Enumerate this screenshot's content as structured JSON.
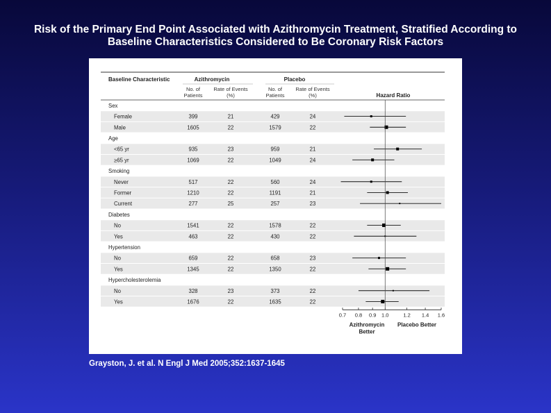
{
  "slide": {
    "title_line1": "Risk of the Primary End Point Associated with Azithromycin Treatment, Stratified According to",
    "title_line2": "Baseline Characteristics Considered to Be Coronary Risk Factors",
    "citation": "Grayston, J. et al. N Engl J Med 2005;352:1637-1645"
  },
  "chart_data": {
    "type": "forest",
    "headers": {
      "baseline": "Baseline Characteristic",
      "azithro_group": "Azithromycin",
      "placebo_group": "Placebo",
      "n_patients_l1": "No. of",
      "n_patients_l2": "Patients",
      "rate_l1": "Rate of Events",
      "rate_l2": "(%)",
      "hazard_ratio": "Hazard Ratio"
    },
    "xaxis": {
      "ticks": [
        "0.7",
        "0.8",
        "0.9",
        "1.0",
        "1.2",
        "1.4",
        "1.6"
      ],
      "tick_values": [
        0.7,
        0.8,
        0.9,
        1.0,
        1.2,
        1.4,
        1.6
      ],
      "left_label_l1": "Azithromycin",
      "left_label_l2": "Better",
      "right_label": "Placebo Better",
      "reference": 1.0
    },
    "rows": [
      {
        "kind": "group",
        "label": "Sex"
      },
      {
        "kind": "sub",
        "label": "Female",
        "azi_n": "399",
        "azi_rate": "21",
        "pla_n": "429",
        "pla_rate": "24",
        "hr": 0.89,
        "lo": 0.71,
        "hi": 1.19,
        "size": 3
      },
      {
        "kind": "sub",
        "label": "Male",
        "azi_n": "1605",
        "azi_rate": "22",
        "pla_n": "1579",
        "pla_rate": "22",
        "hr": 1.01,
        "lo": 0.88,
        "hi": 1.19,
        "size": 5
      },
      {
        "kind": "group",
        "label": "Age"
      },
      {
        "kind": "sub",
        "label": "<65 yr",
        "azi_n": "935",
        "azi_rate": "23",
        "pla_n": "959",
        "pla_rate": "21",
        "hr": 1.11,
        "lo": 0.91,
        "hi": 1.36,
        "size": 4
      },
      {
        "kind": "sub",
        "label": "≥65 yr",
        "azi_n": "1069",
        "azi_rate": "22",
        "pla_n": "1049",
        "pla_rate": "24",
        "hr": 0.9,
        "lo": 0.76,
        "hi": 1.08,
        "size": 4
      },
      {
        "kind": "group",
        "label": "Smoking"
      },
      {
        "kind": "sub",
        "label": "Never",
        "azi_n": "517",
        "azi_rate": "22",
        "pla_n": "560",
        "pla_rate": "24",
        "hr": 0.89,
        "lo": 0.69,
        "hi": 1.15,
        "size": 3
      },
      {
        "kind": "sub",
        "label": "Former",
        "azi_n": "1210",
        "azi_rate": "22",
        "pla_n": "1191",
        "pla_rate": "21",
        "hr": 1.02,
        "lo": 0.86,
        "hi": 1.21,
        "size": 4
      },
      {
        "kind": "sub",
        "label": "Current",
        "azi_n": "277",
        "azi_rate": "25",
        "pla_n": "257",
        "pla_rate": "23",
        "hr": 1.13,
        "lo": 0.81,
        "hi": 1.6,
        "size": 2
      },
      {
        "kind": "group",
        "label": "Diabetes"
      },
      {
        "kind": "sub",
        "label": "No",
        "azi_n": "1541",
        "azi_rate": "22",
        "pla_n": "1578",
        "pla_rate": "22",
        "hr": 0.99,
        "lo": 0.86,
        "hi": 1.14,
        "size": 5
      },
      {
        "kind": "sub",
        "label": "Yes",
        "azi_n": "463",
        "azi_rate": "22",
        "pla_n": "430",
        "pla_rate": "22",
        "hr": 1.0,
        "lo": 0.77,
        "hi": 1.3,
        "size": 2
      },
      {
        "kind": "group",
        "label": "Hypertension"
      },
      {
        "kind": "sub",
        "label": "No",
        "azi_n": "659",
        "azi_rate": "22",
        "pla_n": "658",
        "pla_rate": "23",
        "hr": 0.95,
        "lo": 0.76,
        "hi": 1.19,
        "size": 3
      },
      {
        "kind": "sub",
        "label": "Yes",
        "azi_n": "1345",
        "azi_rate": "22",
        "pla_n": "1350",
        "pla_rate": "22",
        "hr": 1.02,
        "lo": 0.87,
        "hi": 1.19,
        "size": 5
      },
      {
        "kind": "group",
        "label": "Hypercholesterolemia"
      },
      {
        "kind": "sub",
        "label": "No",
        "azi_n": "328",
        "azi_rate": "23",
        "pla_n": "373",
        "pla_rate": "22",
        "hr": 1.07,
        "lo": 0.8,
        "hi": 1.45,
        "size": 2
      },
      {
        "kind": "sub",
        "label": "Yes",
        "azi_n": "1676",
        "azi_rate": "22",
        "pla_n": "1635",
        "pla_rate": "22",
        "hr": 0.98,
        "lo": 0.85,
        "hi": 1.12,
        "size": 5
      }
    ]
  }
}
